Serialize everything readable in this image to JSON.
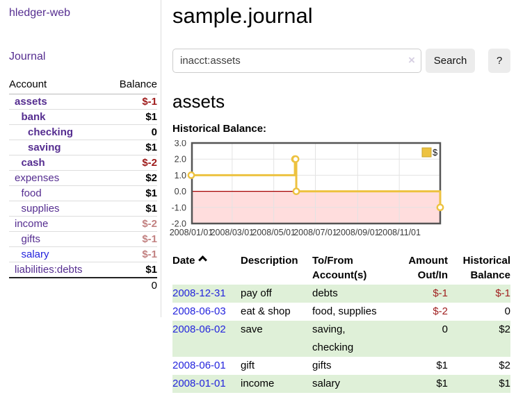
{
  "app": {
    "title": "hledger-web"
  },
  "sidebar": {
    "journal_link": "Journal",
    "table": {
      "headers": {
        "account": "Account",
        "balance": "Balance"
      },
      "accounts": [
        {
          "name": "assets",
          "indent": 1,
          "bold": true,
          "balance": "$-1",
          "balance_style": "neg-strong"
        },
        {
          "name": "bank",
          "indent": 2,
          "bold": true,
          "balance": "$1",
          "balance_style": "pos"
        },
        {
          "name": "checking",
          "indent": 3,
          "bold": true,
          "balance": "0",
          "balance_style": "pos"
        },
        {
          "name": "saving",
          "indent": 3,
          "bold": true,
          "balance": "$1",
          "balance_style": "pos"
        },
        {
          "name": "cash",
          "indent": 2,
          "bold": true,
          "balance": "$-2",
          "balance_style": "neg-strong"
        },
        {
          "name": "expenses",
          "indent": 1,
          "bold": false,
          "balance": "$2",
          "balance_style": "pos"
        },
        {
          "name": "food",
          "indent": 2,
          "bold": false,
          "balance": "$1",
          "balance_style": "pos"
        },
        {
          "name": "supplies",
          "indent": 2,
          "bold": false,
          "balance": "$1",
          "balance_style": "pos"
        },
        {
          "name": "income",
          "indent": 1,
          "bold": false,
          "balance": "$-2",
          "balance_style": "neg-muted"
        },
        {
          "name": "gifts",
          "indent": 2,
          "bold": false,
          "balance": "$-1",
          "balance_style": "neg-muted"
        },
        {
          "name": "salary",
          "indent": 2,
          "bold": false,
          "link_color": "blue",
          "balance": "$-1",
          "balance_style": "neg-muted"
        },
        {
          "name": "liabilities:debts",
          "indent": 1,
          "bold": false,
          "balance": "$1",
          "balance_style": "pos"
        }
      ],
      "total": "0"
    }
  },
  "main": {
    "title": "sample.journal",
    "search": {
      "value": "inacct:assets",
      "clear_icon": "×",
      "button": "Search",
      "help_button": "?"
    },
    "account_heading": "assets",
    "chart_label": "Historical Balance:"
  },
  "chart_data": {
    "type": "line",
    "title": "Historical Balance:",
    "style": "steps",
    "series": [
      {
        "name": "$",
        "color": "#edc240",
        "points": [
          {
            "date": "2008-01-01",
            "value": 1
          },
          {
            "date": "2008-06-01",
            "value": 2
          },
          {
            "date": "2008-06-02",
            "value": 2
          },
          {
            "date": "2008-06-03",
            "value": 0
          },
          {
            "date": "2008-12-31",
            "value": -1
          }
        ]
      }
    ],
    "x_range": [
      "2008-01-01",
      "2008-12-31"
    ],
    "x_ticks": [
      "2008/01/01",
      "2008/03/01",
      "2008/05/01",
      "2008/07/01",
      "2008/09/01",
      "2008/11/01"
    ],
    "y_ticks": [
      "3.0",
      "2.0",
      "1.0",
      "0.0",
      "-1.0",
      "-2.0"
    ],
    "ylim": [
      -2,
      3
    ],
    "grid": true,
    "negative_region_color": "#ffdddd",
    "zero_line_color": "#a40000",
    "plot_border_color": "#545454",
    "legend": {
      "label": "$",
      "position": "top-right",
      "swatch_color": "#edc240"
    }
  },
  "register": {
    "headers": {
      "date": "Date",
      "description": "Description",
      "account": "To/From Account(s)",
      "amount": "Amount Out/In",
      "balance": "Historical Balance"
    },
    "rows": [
      {
        "date": "2008-12-31",
        "description": "pay off",
        "accounts": "debts",
        "amount": "$-1",
        "balance": "$-1"
      },
      {
        "date": "2008-06-03",
        "description": "eat & shop",
        "accounts": "food, supplies",
        "amount": "$-2",
        "balance": "0"
      },
      {
        "date": "2008-06-02",
        "description": "save",
        "accounts": "saving, checking",
        "amount": "0",
        "balance": "$2"
      },
      {
        "date": "2008-06-01",
        "description": "gift",
        "accounts": "gifts",
        "amount": "$1",
        "balance": "$2"
      },
      {
        "date": "2008-01-01",
        "description": "income",
        "accounts": "salary",
        "amount": "$1",
        "balance": "$1"
      }
    ]
  }
}
